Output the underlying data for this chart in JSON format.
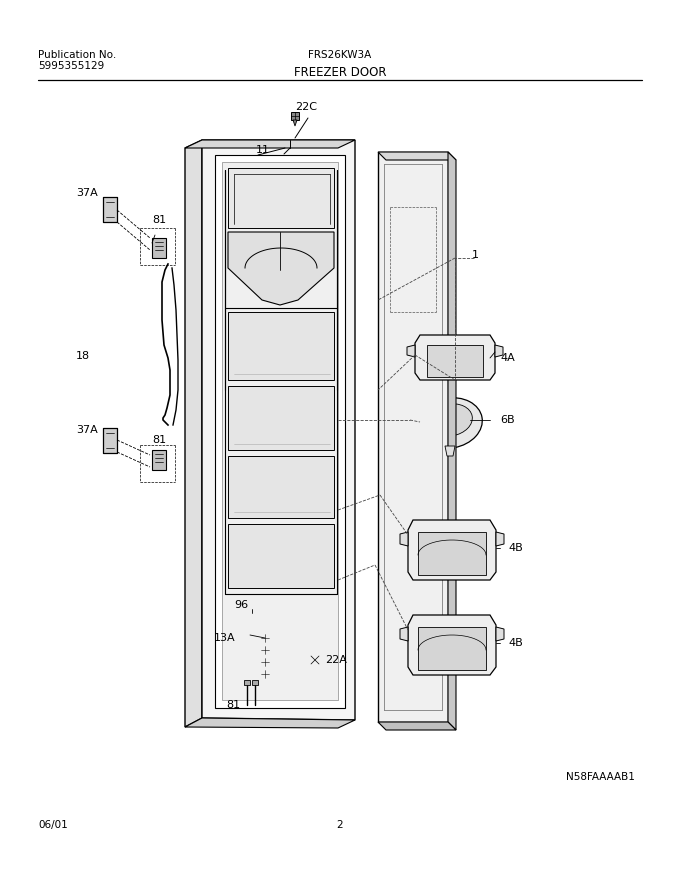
{
  "title_center": "FRS26KW3A",
  "title_sub": "FREEZER DOOR",
  "pub_no_label": "Publication No.",
  "pub_no": "5995355129",
  "date": "06/01",
  "page": "2",
  "diagram_id": "N58FAAAAB1",
  "bg_color": "#ffffff",
  "lc": "#000000",
  "tc": "#000000",
  "fs_small": 7.5,
  "fs_label": 8.0,
  "fs_title": 8.5
}
